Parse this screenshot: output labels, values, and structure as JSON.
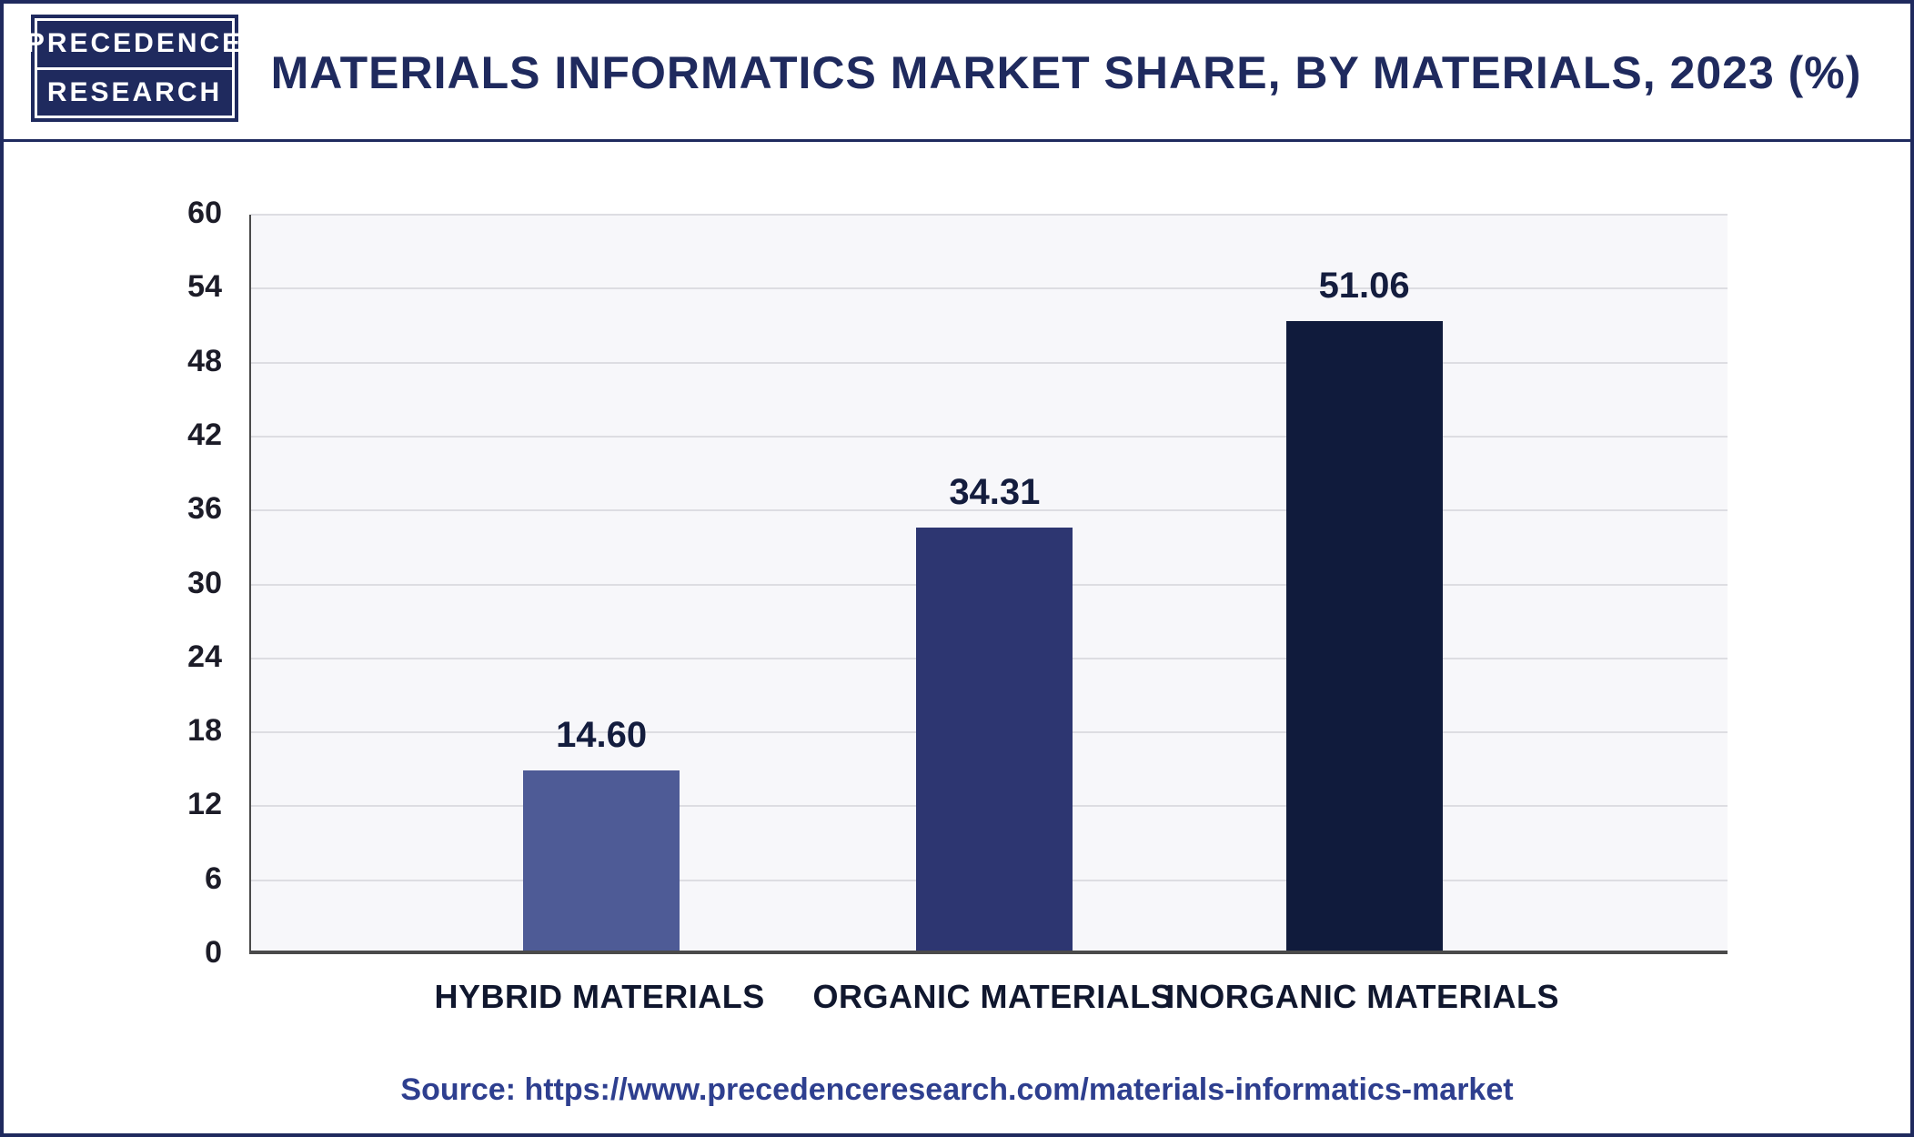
{
  "logo": {
    "line1": "PRECEDENCE",
    "line2": "RESEARCH"
  },
  "header": {
    "title": "MATERIALS INFORMATICS MARKET SHARE, BY MATERIALS, 2023 (%)"
  },
  "chart_data": {
    "type": "bar",
    "title": "MATERIALS INFORMATICS MARKET SHARE, BY MATERIALS, 2023 (%)",
    "categories": [
      "HYBRID MATERIALS",
      "ORGANIC MATERIALS",
      "INORGANIC MATERIALS"
    ],
    "values": [
      14.6,
      34.31,
      51.06
    ],
    "value_labels": [
      "14.60",
      "34.31",
      "51.06"
    ],
    "bar_colors": [
      "#4e5b96",
      "#2d3671",
      "#101b3c"
    ],
    "xlabel": "",
    "ylabel": "",
    "ylim": [
      0,
      60
    ],
    "yticks": [
      0,
      6,
      12,
      18,
      24,
      30,
      36,
      42,
      48,
      54,
      60
    ],
    "grid": true,
    "legend": "none"
  },
  "source": {
    "text": "Source: https://www.precedenceresearch.com/materials-informatics-market"
  },
  "colors": {
    "accent_navy": "#1f2a5e",
    "axis": "#4a4a4a",
    "grid": "#dddde2",
    "plot_background": "#f7f7fa",
    "source_text": "#2e3f8f"
  }
}
